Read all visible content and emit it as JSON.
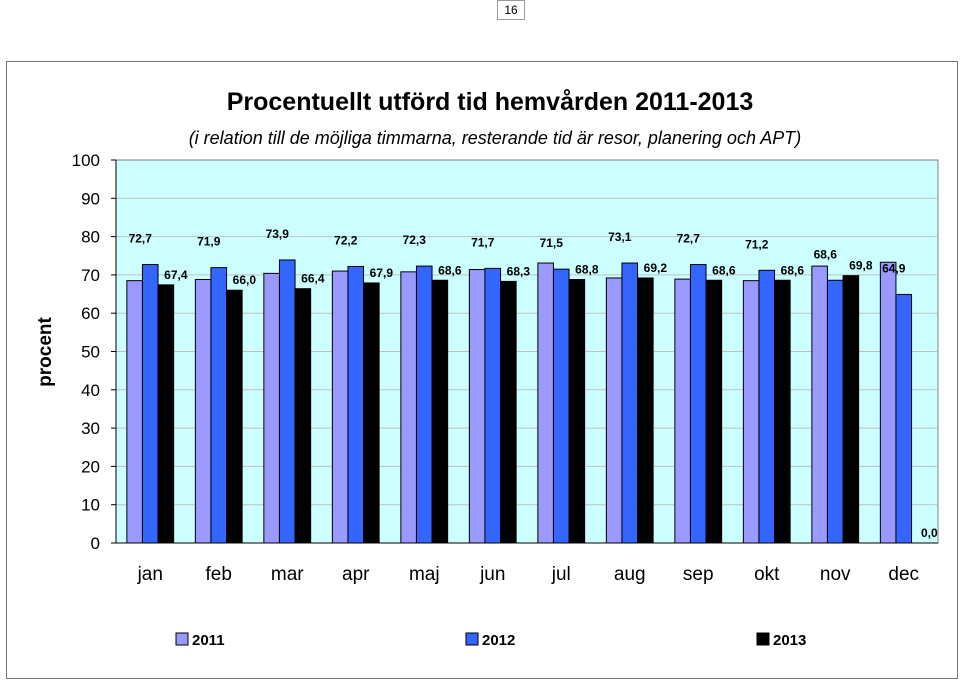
{
  "page_number": "16",
  "chart_data": {
    "type": "bar",
    "title": "Procentuellt utförd tid hemvården 2011-2013",
    "subtitle": "(i relation till de möjliga timmarna, resterande tid är resor, planering och APT)",
    "xlabel": "",
    "ylabel": "procent",
    "ylim": [
      0,
      100
    ],
    "yticks": [
      0,
      10,
      20,
      30,
      40,
      50,
      60,
      70,
      80,
      90,
      100
    ],
    "categories": [
      "jan",
      "feb",
      "mar",
      "apr",
      "maj",
      "jun",
      "jul",
      "aug",
      "sep",
      "okt",
      "nov",
      "dec"
    ],
    "legend_position": "bottom",
    "series": [
      {
        "name": "2011",
        "color": "#9999ff",
        "values": [
          68.5,
          68.8,
          70.4,
          71.0,
          70.8,
          71.4,
          73.1,
          69.2,
          68.9,
          68.5,
          72.3,
          73.3
        ],
        "labels": [
          "",
          "",
          "",
          "",
          "",
          "",
          "",
          "",
          "",
          "",
          "",
          ""
        ]
      },
      {
        "name": "2012",
        "color": "#3366ff",
        "values": [
          72.7,
          71.9,
          73.9,
          72.2,
          72.3,
          71.7,
          71.5,
          73.1,
          72.7,
          71.2,
          68.6,
          64.9
        ],
        "labels": [
          "72,7",
          "71,9",
          "73,9",
          "72,2",
          "72,3",
          "71,7",
          "71,5",
          "73,1",
          "72,7",
          "71,2",
          "68,6",
          "64,9"
        ]
      },
      {
        "name": "2013",
        "color": "#000000",
        "values": [
          67.4,
          66.0,
          66.4,
          67.9,
          68.6,
          68.3,
          68.8,
          69.2,
          68.6,
          68.6,
          69.8,
          0.0
        ],
        "labels": [
          "67,4",
          "66,0",
          "66,4",
          "67,9",
          "68,6",
          "68,3",
          "68,8",
          "69,2",
          "68,6",
          "68,6",
          "69,8",
          "0,0"
        ]
      }
    ]
  }
}
